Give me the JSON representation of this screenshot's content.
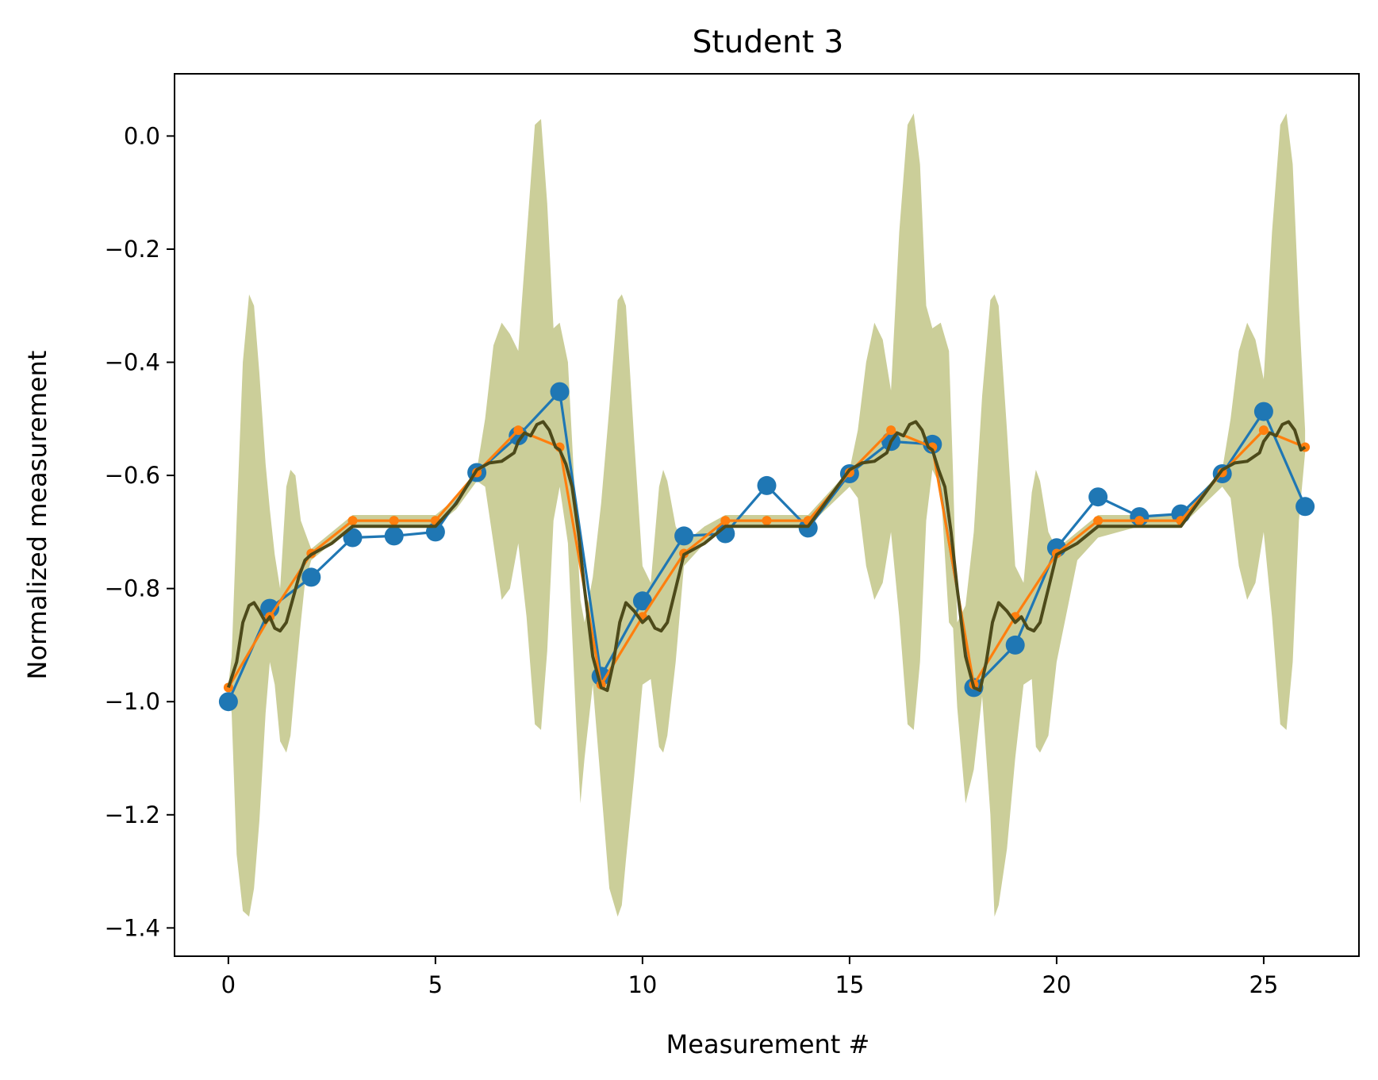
{
  "chart_data": {
    "type": "line",
    "title": "Student 3",
    "xlabel": "Measurement #",
    "ylabel": "Normalized measurement",
    "xlim": [
      -1.3,
      27.3
    ],
    "ylim": [
      -1.45,
      0.11
    ],
    "xticks": [
      0,
      5,
      10,
      15,
      20,
      25
    ],
    "xtick_labels": [
      "0",
      "5",
      "10",
      "15",
      "20",
      "25"
    ],
    "yticks": [
      0.0,
      -0.2,
      -0.4,
      -0.6,
      -0.8,
      -1.0,
      -1.2,
      -1.4
    ],
    "ytick_labels": [
      "0.0",
      "−0.2",
      "−0.4",
      "−0.6",
      "−0.8",
      "−1.0",
      "−1.2",
      "−1.4"
    ],
    "grid": false,
    "band": {
      "color": "#cbce99",
      "x": [
        0,
        0.08,
        0.2,
        0.35,
        0.5,
        0.62,
        0.75,
        0.9,
        1.0,
        1.12,
        1.25,
        1.4,
        1.5,
        1.62,
        1.75,
        1.85,
        2.0,
        2.5,
        3,
        4,
        5,
        5.5,
        6,
        6.2,
        6.4,
        6.6,
        6.8,
        7.0,
        7.2,
        7.4,
        7.55,
        7.7,
        7.85,
        8.0,
        8.2,
        8.4,
        8.5,
        8.6,
        8.8,
        9.0,
        9.2,
        9.4,
        9.5,
        9.6,
        9.8,
        10.0,
        10.2,
        10.4,
        10.5,
        10.6,
        10.8,
        11.0,
        11.5,
        12,
        13,
        14,
        15,
        15.2,
        15.4,
        15.6,
        15.8,
        16.0,
        16.2,
        16.4,
        16.55,
        16.7,
        16.85,
        17.0,
        17.2,
        17.4,
        17.5,
        17.6,
        17.8,
        18.0,
        18.2,
        18.4,
        18.5,
        18.6,
        18.8,
        19.0,
        19.2,
        19.4,
        19.5,
        19.6,
        19.8,
        20.0,
        20.5,
        21,
        22,
        23,
        24,
        24.2,
        24.4,
        24.6,
        24.8,
        25.0,
        25.2,
        25.4,
        25.55,
        25.7,
        25.85,
        26.0
      ],
      "upper": [
        -0.97,
        -0.92,
        -0.68,
        -0.4,
        -0.28,
        -0.3,
        -0.42,
        -0.58,
        -0.66,
        -0.74,
        -0.8,
        -0.62,
        -0.59,
        -0.6,
        -0.68,
        -0.7,
        -0.73,
        -0.7,
        -0.67,
        -0.67,
        -0.67,
        -0.64,
        -0.59,
        -0.5,
        -0.37,
        -0.33,
        -0.35,
        -0.38,
        -0.18,
        0.02,
        0.03,
        -0.12,
        -0.34,
        -0.33,
        -0.4,
        -0.68,
        -0.82,
        -0.86,
        -0.78,
        -0.65,
        -0.48,
        -0.29,
        -0.28,
        -0.3,
        -0.54,
        -0.76,
        -0.79,
        -0.62,
        -0.59,
        -0.61,
        -0.69,
        -0.72,
        -0.69,
        -0.67,
        -0.67,
        -0.67,
        -0.59,
        -0.52,
        -0.4,
        -0.33,
        -0.36,
        -0.45,
        -0.17,
        0.02,
        0.04,
        -0.05,
        -0.3,
        -0.34,
        -0.33,
        -0.38,
        -0.6,
        -0.86,
        -0.83,
        -0.7,
        -0.46,
        -0.29,
        -0.28,
        -0.3,
        -0.52,
        -0.76,
        -0.79,
        -0.63,
        -0.59,
        -0.61,
        -0.7,
        -0.73,
        -0.7,
        -0.67,
        -0.67,
        -0.67,
        -0.59,
        -0.5,
        -0.38,
        -0.33,
        -0.36,
        -0.43,
        -0.17,
        0.02,
        0.04,
        -0.05,
        -0.3,
        -0.52
      ],
      "lower": [
        -0.97,
        -1.02,
        -1.27,
        -1.37,
        -1.38,
        -1.33,
        -1.21,
        -1.02,
        -0.93,
        -0.97,
        -1.07,
        -1.09,
        -1.06,
        -0.96,
        -0.86,
        -0.79,
        -0.75,
        -0.72,
        -0.69,
        -0.69,
        -0.69,
        -0.66,
        -0.61,
        -0.62,
        -0.72,
        -0.82,
        -0.8,
        -0.72,
        -0.85,
        -1.04,
        -1.05,
        -0.91,
        -0.68,
        -0.62,
        -0.72,
        -1.04,
        -1.18,
        -1.1,
        -0.97,
        -1.15,
        -1.33,
        -1.38,
        -1.36,
        -1.28,
        -1.13,
        -0.97,
        -0.96,
        -1.08,
        -1.09,
        -1.06,
        -0.93,
        -0.76,
        -0.72,
        -0.69,
        -0.69,
        -0.69,
        -0.62,
        -0.64,
        -0.76,
        -0.82,
        -0.79,
        -0.7,
        -0.85,
        -1.04,
        -1.05,
        -0.93,
        -0.68,
        -0.59,
        -0.62,
        -0.86,
        -0.87,
        -1.01,
        -1.18,
        -1.12,
        -0.99,
        -1.2,
        -1.38,
        -1.36,
        -1.26,
        -1.1,
        -0.97,
        -0.96,
        -1.08,
        -1.09,
        -1.06,
        -0.93,
        -0.75,
        -0.71,
        -0.69,
        -0.69,
        -0.62,
        -0.64,
        -0.76,
        -0.82,
        -0.79,
        -0.7,
        -0.85,
        -1.04,
        -1.05,
        -0.93,
        -0.68,
        -0.56
      ]
    },
    "series": [
      {
        "color": "#1f77b4",
        "marker": "circle-large",
        "x": [
          0,
          1,
          2,
          3,
          4,
          5,
          6,
          7,
          8,
          9,
          10,
          11,
          12,
          13,
          14,
          15,
          16,
          17,
          18,
          19,
          20,
          21,
          22,
          23,
          24,
          25,
          26
        ],
        "y": [
          -1.0,
          -0.835,
          -0.78,
          -0.71,
          -0.707,
          -0.7,
          -0.595,
          -0.53,
          -0.452,
          -0.955,
          -0.822,
          -0.707,
          -0.703,
          -0.618,
          -0.693,
          -0.597,
          -0.54,
          -0.545,
          -0.975,
          -0.9,
          -0.728,
          -0.638,
          -0.673,
          -0.668,
          -0.597,
          -0.487,
          -0.655
        ]
      },
      {
        "color": "#ff7f0e",
        "marker": "circle-small",
        "x": [
          0,
          1,
          2,
          3,
          4,
          5,
          6,
          7,
          8,
          9,
          10,
          11,
          12,
          13,
          14,
          15,
          16,
          17,
          18,
          19,
          20,
          21,
          22,
          23,
          24,
          25,
          26
        ],
        "y": [
          -0.975,
          -0.85,
          -0.738,
          -0.68,
          -0.68,
          -0.68,
          -0.595,
          -0.52,
          -0.55,
          -0.97,
          -0.85,
          -0.738,
          -0.68,
          -0.68,
          -0.68,
          -0.595,
          -0.52,
          -0.55,
          -0.97,
          -0.85,
          -0.738,
          -0.68,
          -0.68,
          -0.68,
          -0.595,
          -0.52,
          -0.55
        ]
      },
      {
        "color": "#4d4a1a",
        "marker": "none",
        "x": [
          0,
          0.2,
          0.35,
          0.5,
          0.62,
          0.75,
          0.9,
          1.0,
          1.12,
          1.25,
          1.4,
          1.55,
          1.7,
          1.85,
          2.0,
          2.5,
          3,
          4,
          5,
          5.5,
          6,
          6.3,
          6.6,
          6.9,
          7.0,
          7.15,
          7.3,
          7.45,
          7.6,
          7.75,
          7.9,
          8.0,
          8.15,
          8.3,
          8.45,
          8.6,
          8.8,
          9.0,
          9.15,
          9.3,
          9.45,
          9.6,
          9.8,
          10.0,
          10.15,
          10.3,
          10.45,
          10.6,
          10.8,
          11.0,
          11.5,
          12,
          13,
          14,
          15,
          15.3,
          15.6,
          15.9,
          16.0,
          16.15,
          16.3,
          16.45,
          16.6,
          16.75,
          16.9,
          17.0,
          17.15,
          17.3,
          17.45,
          17.6,
          17.8,
          18.0,
          18.15,
          18.3,
          18.45,
          18.6,
          18.8,
          19.0,
          19.15,
          19.3,
          19.45,
          19.6,
          19.8,
          20.0,
          20.5,
          21,
          22,
          23,
          24,
          24.3,
          24.6,
          24.9,
          25.0,
          25.15,
          25.3,
          25.45,
          25.6,
          25.75,
          25.9,
          26.0
        ],
        "y": [
          -0.975,
          -0.93,
          -0.86,
          -0.83,
          -0.825,
          -0.84,
          -0.86,
          -0.85,
          -0.87,
          -0.875,
          -0.86,
          -0.82,
          -0.78,
          -0.75,
          -0.74,
          -0.72,
          -0.69,
          -0.69,
          -0.69,
          -0.65,
          -0.59,
          -0.578,
          -0.575,
          -0.56,
          -0.54,
          -0.525,
          -0.53,
          -0.51,
          -0.505,
          -0.52,
          -0.55,
          -0.555,
          -0.58,
          -0.62,
          -0.7,
          -0.8,
          -0.92,
          -0.975,
          -0.98,
          -0.93,
          -0.86,
          -0.825,
          -0.84,
          -0.86,
          -0.85,
          -0.87,
          -0.875,
          -0.86,
          -0.8,
          -0.74,
          -0.72,
          -0.69,
          -0.69,
          -0.69,
          -0.59,
          -0.578,
          -0.575,
          -0.56,
          -0.54,
          -0.525,
          -0.53,
          -0.51,
          -0.505,
          -0.52,
          -0.55,
          -0.555,
          -0.59,
          -0.62,
          -0.7,
          -0.8,
          -0.92,
          -0.975,
          -0.98,
          -0.93,
          -0.86,
          -0.825,
          -0.84,
          -0.86,
          -0.85,
          -0.87,
          -0.875,
          -0.86,
          -0.8,
          -0.74,
          -0.72,
          -0.69,
          -0.69,
          -0.69,
          -0.59,
          -0.578,
          -0.575,
          -0.56,
          -0.54,
          -0.525,
          -0.53,
          -0.51,
          -0.505,
          -0.52,
          -0.555,
          -0.55
        ]
      }
    ]
  }
}
